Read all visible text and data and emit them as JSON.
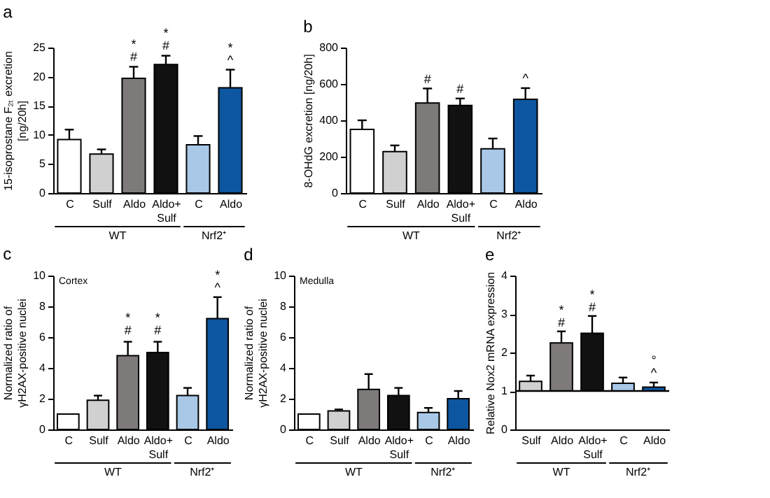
{
  "chart_data": [
    {
      "type": "bar",
      "title": "a",
      "ylabel": "15-isoprostane F₂ₜ excretion\n[ng/20h]",
      "categories": [
        "C",
        "Sulf",
        "Aldo",
        "Aldo+\nSulf",
        "C",
        "Aldo"
      ],
      "values": [
        9.2,
        6.7,
        19.7,
        22.1,
        8.3,
        18.1
      ],
      "colors": [
        "#ffffff",
        "#d0d0d0",
        "#7f7a7a",
        "#111111",
        "#a9c8e8",
        "#0e56a0"
      ],
      "errors": [
        [
          9.2,
          10.9
        ],
        [
          6.7,
          7.5
        ],
        [
          19.7,
          21.7
        ],
        [
          22.1,
          23.6
        ],
        [
          8.3,
          9.8
        ],
        [
          18.1,
          21.2
        ]
      ],
      "ylim": [
        0,
        25
      ],
      "yticks": [
        0,
        5,
        10,
        15,
        20,
        25
      ],
      "annotations": [
        "WT",
        "Nrf2⁺",
        {
          "text": "*\n#",
          "x": "Aldo",
          "y": 22.2
        },
        {
          "text": "*\n#",
          "x": "Aldo+\nSulf",
          "y": 24.1
        },
        "*\n^"
      ]
    },
    {
      "type": "bar",
      "title": "b",
      "ylabel": "8-OHdG excretion [ng/20h]",
      "categories": [
        "C",
        "Sulf",
        "Aldo",
        "Aldo+\nSulf",
        "C",
        "Aldo"
      ],
      "values": [
        350,
        228,
        495,
        482,
        243,
        515
      ],
      "colors": [
        "#ffffff",
        "#d0d0d0",
        "#7f7a7a",
        "#111111",
        "#a9c8e8",
        "#0e56a0"
      ],
      "errors": [
        [
          350,
          400
        ],
        [
          228,
          262
        ],
        [
          495,
          575
        ],
        [
          482,
          520
        ],
        [
          243,
          300
        ],
        [
          515,
          577
        ]
      ],
      "ylim": [
        0,
        800
      ],
      "yticks": [
        0,
        200,
        400,
        600,
        800
      ],
      "annotations": [
        "WT",
        "Nrf2⁺",
        {
          "text": "#",
          "x": "Aldo",
          "y": 590
        },
        {
          "text": "#",
          "x": "Aldo+\nSulf",
          "y": 535
        },
        "^"
      ]
    },
    {
      "type": "bar",
      "title": "c",
      "subtitle": "Cortex",
      "ylabel": "Normalized ratio of\nγH2AX-positive nuclei",
      "categories": [
        "C",
        "Sulf",
        "Aldo",
        "Aldo+\nSulf",
        "C",
        "Aldo"
      ],
      "values": [
        1.0,
        1.9,
        4.8,
        5.0,
        2.2,
        7.2
      ],
      "colors": [
        "#ffffff",
        "#d0d0d0",
        "#7f7a7a",
        "#111111",
        "#a9c8e8",
        "#0e56a0"
      ],
      "errors": [
        null,
        [
          1.9,
          2.2
        ],
        [
          4.8,
          5.7
        ],
        [
          5.0,
          5.7
        ],
        [
          2.2,
          2.7
        ],
        [
          7.2,
          8.6
        ]
      ],
      "ylim": [
        0,
        10
      ],
      "yticks": [
        0,
        2,
        4,
        6,
        8,
        10
      ],
      "annotations": [
        "WT",
        "Nrf2⁺",
        {
          "text": "*\n#",
          "x": "Aldo",
          "y": 6.0
        },
        {
          "text": "*\n#",
          "x": "Aldo+\nSulf",
          "y": 6.0
        },
        "*\n^"
      ]
    },
    {
      "type": "bar",
      "title": "d",
      "subtitle": "Medulla",
      "ylabel": "Normalized ratio of\nγH2AX-positive nuclei",
      "categories": [
        "C",
        "Sulf",
        "Aldo",
        "Aldo+\nSulf",
        "C",
        "Aldo"
      ],
      "values": [
        1.0,
        1.2,
        2.6,
        2.2,
        1.1,
        2.0
      ],
      "colors": [
        "#ffffff",
        "#d0d0d0",
        "#7f7a7a",
        "#111111",
        "#a9c8e8",
        "#0e56a0"
      ],
      "errors": [
        null,
        [
          1.2,
          1.3
        ],
        [
          2.6,
          3.6
        ],
        [
          2.2,
          2.7
        ],
        [
          1.1,
          1.4
        ],
        [
          2.0,
          2.5
        ]
      ],
      "ylim": [
        0,
        10
      ],
      "yticks": [
        0,
        2,
        4,
        6,
        8,
        10
      ],
      "annotations": [
        "WT",
        "Nrf2⁺"
      ]
    },
    {
      "type": "bar",
      "title": "e",
      "ylabel": "Relative Nox2 mRNA expression",
      "categories": [
        "Sulf",
        "Aldo",
        "Aldo+\nSulf",
        "C",
        "Aldo"
      ],
      "base": [
        1,
        1,
        1,
        1,
        1
      ],
      "values": [
        0.25,
        1.25,
        1.5,
        0.2,
        0.1
      ],
      "colors": [
        "#d0d0d0",
        "#7f7a7a",
        "#111111",
        "#a9c8e8",
        "#0e56a0"
      ],
      "errors": [
        [
          1.25,
          1.4
        ],
        [
          2.25,
          2.55
        ],
        [
          2.5,
          2.95
        ],
        [
          1.2,
          1.35
        ],
        [
          1.1,
          1.22
        ]
      ],
      "ylim": [
        0,
        4
      ],
      "yticks": [
        0,
        1,
        2,
        3,
        4
      ],
      "ref_lines": [
        {
          "axis": "y",
          "value": 1
        }
      ],
      "annotations": [
        "WT",
        "Nrf2⁺",
        {
          "text": "*\n#",
          "x": "Aldo",
          "y": 2.6
        },
        {
          "text": "*\n#",
          "x": "Aldo+\nSulf",
          "y": 3.0
        },
        "°\n^"
      ]
    }
  ]
}
